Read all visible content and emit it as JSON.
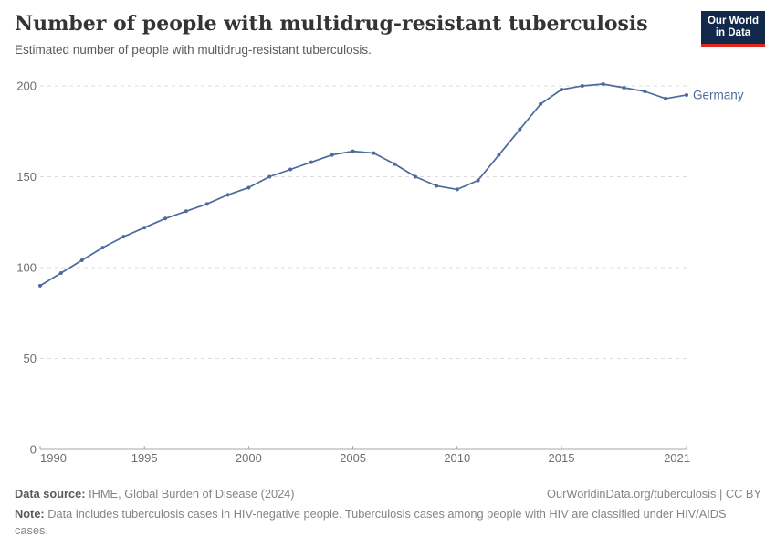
{
  "header": {
    "title": "Number of people with multidrug-resistant tuberculosis",
    "subtitle": "Estimated number of people with multidrug-resistant tuberculosis.",
    "logo": {
      "line1": "Our World",
      "line2": "in Data",
      "bg_color": "#12294b",
      "accent_color": "#e0271c"
    }
  },
  "chart_data": {
    "type": "line",
    "title": "Number of people with multidrug-resistant tuberculosis",
    "subtitle": "Estimated number of people with multidrug-resistant tuberculosis.",
    "xlabel": "",
    "ylabel": "",
    "xlim": [
      1990,
      2021
    ],
    "ylim": [
      0,
      200
    ],
    "xticks": [
      1990,
      1995,
      2000,
      2005,
      2010,
      2015,
      2021
    ],
    "yticks": [
      0,
      50,
      100,
      150,
      200
    ],
    "grid": "horizontal-dashed",
    "legend_position": "end-of-line",
    "x": [
      1990,
      1991,
      1992,
      1993,
      1994,
      1995,
      1996,
      1997,
      1998,
      1999,
      2000,
      2001,
      2002,
      2003,
      2004,
      2005,
      2006,
      2007,
      2008,
      2009,
      2010,
      2011,
      2012,
      2013,
      2014,
      2015,
      2016,
      2017,
      2018,
      2019,
      2020,
      2021
    ],
    "series": [
      {
        "name": "Germany",
        "color": "#4C6A9C",
        "values": [
          90,
          97,
          104,
          111,
          117,
          122,
          127,
          131,
          135,
          140,
          144,
          150,
          154,
          158,
          162,
          164,
          163,
          157,
          150,
          145,
          143,
          148,
          162,
          176,
          190,
          198,
          200,
          201,
          199,
          197,
          193,
          195
        ]
      }
    ]
  },
  "colors": {
    "axis_text": "#6e6e6e",
    "gridline": "#dcdcdc",
    "axis_line": "#a7a7a7",
    "line_blue": "#4C6A9C"
  },
  "footer": {
    "datasource_label": "Data source:",
    "datasource_value": " IHME, Global Burden of Disease (2024)",
    "link": "OurWorldinData.org/tuberculosis | CC BY",
    "note_label": "Note:",
    "note_value": " Data includes tuberculosis cases in HIV-negative people. Tuberculosis cases among people with HIV are classified under HIV/AIDS cases."
  }
}
